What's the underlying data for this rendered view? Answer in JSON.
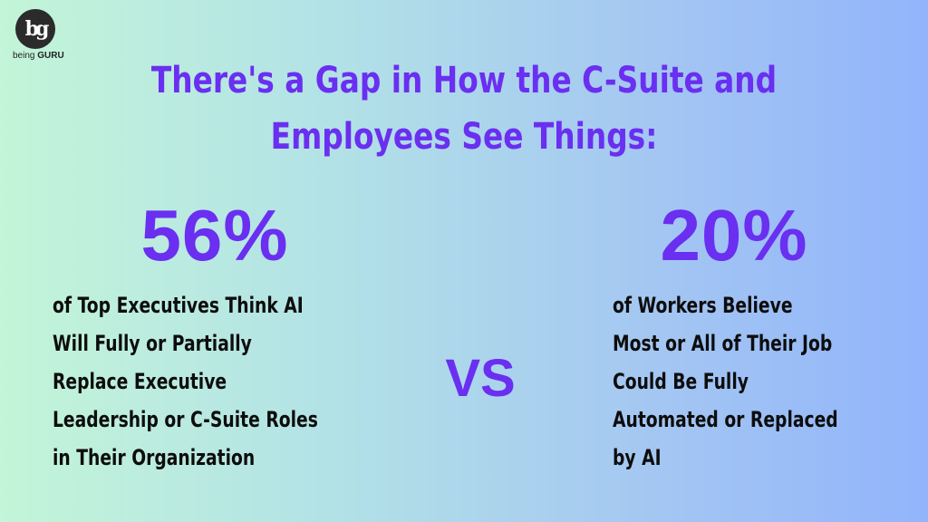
{
  "logo": {
    "monogram": "bg",
    "text_prefix": "being",
    "text_brand": "GURU"
  },
  "title": {
    "line1": "There's a Gap in How the C-Suite and",
    "line2": "Employees See Things:"
  },
  "left": {
    "stat": "56%",
    "lines": [
      "of Top Executives Think AI",
      "Will Fully or Partially",
      "Replace Executive",
      "Leadership or C-Suite Roles",
      "in Their Organization"
    ]
  },
  "vs": "VS",
  "right": {
    "stat": "20%",
    "lines": [
      "of Workers Believe",
      "Most or All of Their Job",
      "Could Be Fully",
      "Automated or Replaced",
      "by AI"
    ]
  },
  "colors": {
    "accent": "#6a2ff0",
    "text": "#0d0d0d",
    "gradient_start": "#c3f5d8",
    "gradient_end": "#92b4fb"
  }
}
